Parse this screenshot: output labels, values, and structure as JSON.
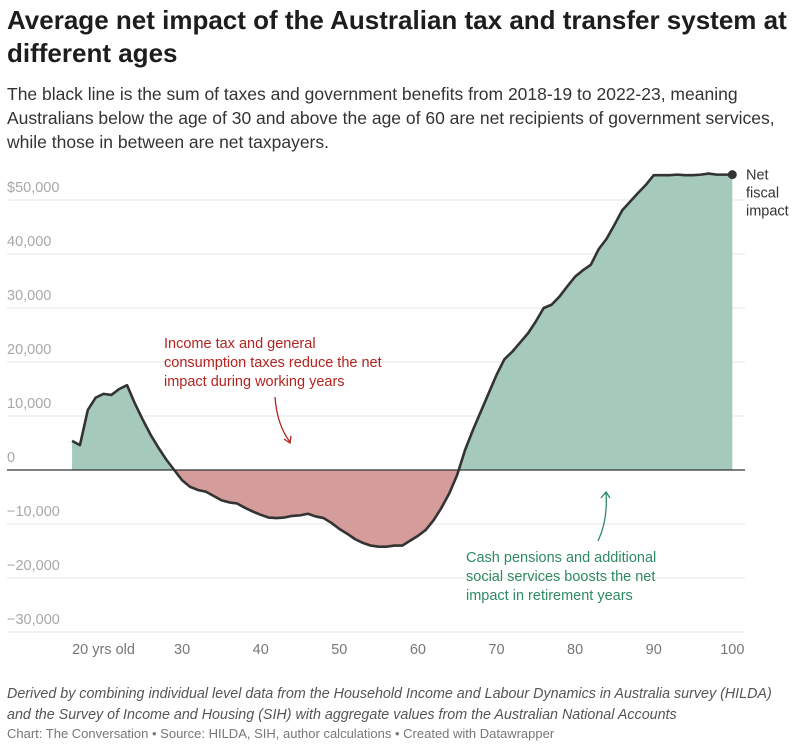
{
  "title": "Average net impact of the Australian tax and transfer system at different ages",
  "subtitle": "The black line is the sum of taxes and government benefits from 2018-19 to 2022-23, meaning Australians below the age of 30 and above the age of 60 are net recipients of government services, while those in between are net taxpayers.",
  "notes": "Derived by combining individual level data from the Household Income and Labour Dynamics in Australia survey (HILDA) and the Survey of Income and Housing (SIH) with aggregate values from the Australian National Accounts",
  "byline": "Chart: The Conversation • Source: HILDA, SIH, author calculations • Created with Datawrapper",
  "chart_data": {
    "type": "area",
    "xlabel": "",
    "ylabel": "",
    "xlim": [
      16,
      100
    ],
    "ylim": [
      -30000,
      50000
    ],
    "grid": true,
    "x_ticks": [
      20,
      30,
      40,
      50,
      60,
      70,
      80,
      90,
      100
    ],
    "x_tick_labels": [
      "20 yrs old",
      "30",
      "40",
      "50",
      "60",
      "70",
      "80",
      "90",
      "100"
    ],
    "y_ticks": [
      50000,
      40000,
      30000,
      20000,
      10000,
      0,
      -10000,
      -20000,
      -30000
    ],
    "y_tick_labels": [
      "$50,000",
      "40,000",
      "30,000",
      "20,000",
      "10,000",
      "0",
      "−10,000",
      "−20,000",
      "−30,000"
    ],
    "positive_color": "#a5c9ba",
    "negative_color": "#d49c9a",
    "line_color": "#333333",
    "series": [
      {
        "name": "Net fiscal impact",
        "x": [
          16,
          17,
          18,
          19,
          20,
          21,
          22,
          23,
          24,
          25,
          26,
          27,
          28,
          29,
          30,
          31,
          32,
          33,
          34,
          35,
          36,
          37,
          38,
          39,
          40,
          41,
          42,
          43,
          44,
          45,
          46,
          47,
          48,
          49,
          50,
          51,
          52,
          53,
          54,
          55,
          56,
          57,
          58,
          59,
          60,
          61,
          62,
          63,
          64,
          65,
          66,
          67,
          68,
          69,
          70,
          71,
          72,
          73,
          74,
          75,
          76,
          77,
          78,
          79,
          80,
          81,
          82,
          83,
          84,
          85,
          86,
          87,
          88,
          89,
          90,
          91,
          92,
          93,
          94,
          95,
          96,
          97,
          98,
          99,
          100
        ],
        "y": [
          5400,
          4600,
          11100,
          13400,
          14100,
          13900,
          15000,
          15700,
          12300,
          9300,
          6500,
          4100,
          1900,
          0,
          -1900,
          -3100,
          -3700,
          -4000,
          -4800,
          -5600,
          -6000,
          -6200,
          -7000,
          -7700,
          -8300,
          -8800,
          -8900,
          -8800,
          -8500,
          -8400,
          -8100,
          -8600,
          -8900,
          -9800,
          -10900,
          -11800,
          -12800,
          -13500,
          -14000,
          -14200,
          -14200,
          -14000,
          -14000,
          -13100,
          -12200,
          -11100,
          -9300,
          -7000,
          -4300,
          -900,
          3700,
          7400,
          10800,
          14200,
          17600,
          20500,
          21900,
          23600,
          25300,
          27500,
          30000,
          30600,
          32100,
          34000,
          35800,
          37000,
          38000,
          40900,
          42800,
          45400,
          48100,
          49700,
          51300,
          52800,
          54600,
          54600,
          54600,
          54700,
          54600,
          54600,
          54700,
          54900,
          54700,
          54700,
          54700
        ]
      }
    ],
    "annotations": [
      {
        "text": "Income tax and general consumption taxes reduce the net impact during working years",
        "color": "#b5231f"
      },
      {
        "text": "Cash pensions and additional social services boosts the net impact in retirement years",
        "color": "#2e8a60"
      },
      {
        "text": "Net fiscal impact",
        "color": "#333333"
      }
    ]
  }
}
